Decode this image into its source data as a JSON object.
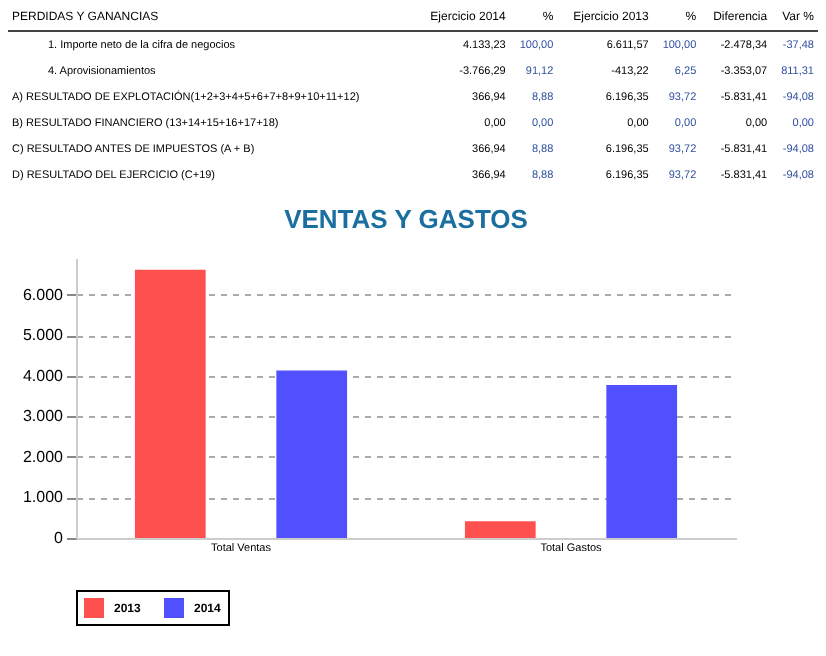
{
  "chart_data": [
    {
      "type": "other",
      "annotations": [
        "PERDIDAS Y GANANCIAS",
        "Ejercicio 2014",
        "%",
        "Ejercicio 2013",
        "%",
        "Diferencia",
        "Var %",
        "1. Importe neto de la cifra de negocios",
        "4.133,23",
        "100,00",
        "6.611,57",
        "100,00",
        "-2.478,34",
        "-37,48",
        "4. Aprovisionamientos",
        "-3.766,29",
        "91,12",
        "-413,22",
        "6,25",
        "-3.353,07",
        "811,31",
        "A) RESULTADO DE EXPLOTACIÓN(1+2+3+4+5+6+7+8+9+10+11+12)",
        "366,94",
        "8,88",
        "6.196,35",
        "93,72",
        "-5.831,41",
        "-94,08",
        "B) RESULTADO FINANCIERO (13+14+15+16+17+18)",
        "0,00",
        "0,00",
        "0,00",
        "0,00",
        "0,00",
        "0,00",
        "C) RESULTADO ANTES DE IMPUESTOS (A + B)",
        "366,94",
        "8,88",
        "6.196,35",
        "93,72",
        "-5.831,41",
        "-94,08",
        "D) RESULTADO DEL EJERCICIO (C+19)",
        "366,94",
        "8,88",
        "6.196,35",
        "93,72",
        "-5.831,41",
        "-94,08"
      ]
    },
    {
      "type": "bar",
      "title": "VENTAS Y GASTOS",
      "categories": [
        "Total Ventas",
        "Total Gastos"
      ],
      "series": [
        {
          "name": "2013",
          "color": "#ff5050",
          "values": [
            6610,
            410
          ]
        },
        {
          "name": "2014",
          "color": "#5050ff",
          "values": [
            4130,
            3770
          ]
        }
      ],
      "ylim": [
        0,
        6900
      ],
      "yticks": [
        {
          "value": 0,
          "label": "0"
        },
        {
          "value": 1000,
          "label": "1.000"
        },
        {
          "value": 2000,
          "label": "2.000"
        },
        {
          "value": 3000,
          "label": "3.000"
        },
        {
          "value": 4000,
          "label": "4.000"
        },
        {
          "value": 5000,
          "label": "5.000"
        },
        {
          "value": 6000,
          "label": "6.000"
        }
      ],
      "grid": "y",
      "legend": "bottom"
    }
  ]
}
